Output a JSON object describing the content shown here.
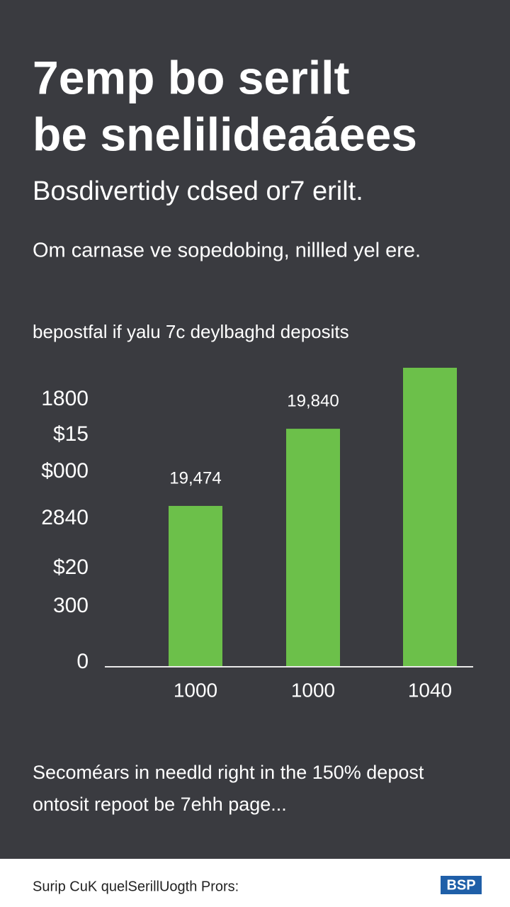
{
  "header": {
    "title_lines": [
      "7emp bo serilt",
      "be snelilideaáees"
    ],
    "subtitle": "Bosdivertidy cdsed or7 erilt.",
    "intro": "Om carnase ve sopedobing, nillled yel ere."
  },
  "chart_data": {
    "type": "bar",
    "title": "bepostfal if yalu 7c deylbaghd deposits",
    "categories": [
      "1000",
      "1000",
      "1040"
    ],
    "values": [
      53.8,
      79.6,
      100
    ],
    "color": "#6cc04a",
    "ylim": [
      0,
      100
    ],
    "yticks": [
      0,
      {
        "value": 18.7,
        "label": "300"
      },
      {
        "value": 31.5,
        "label": "$20"
      },
      {
        "value": 48.1,
        "label": "2840"
      },
      {
        "value": 63.7,
        "label": "$000"
      },
      {
        "value": 76.1,
        "label": "$15"
      },
      {
        "value": 87.9,
        "label": "1800"
      }
    ],
    "annotations": [
      "19,474",
      "19,840"
    ]
  },
  "footer": {
    "lines": [
      "Secoméars in needld right in the 150% depost",
      "ontosit repoot be 7ehh page..."
    ],
    "bar_text": "Surip CuK quelSerillUogth Prors:",
    "logo": "BSP"
  }
}
